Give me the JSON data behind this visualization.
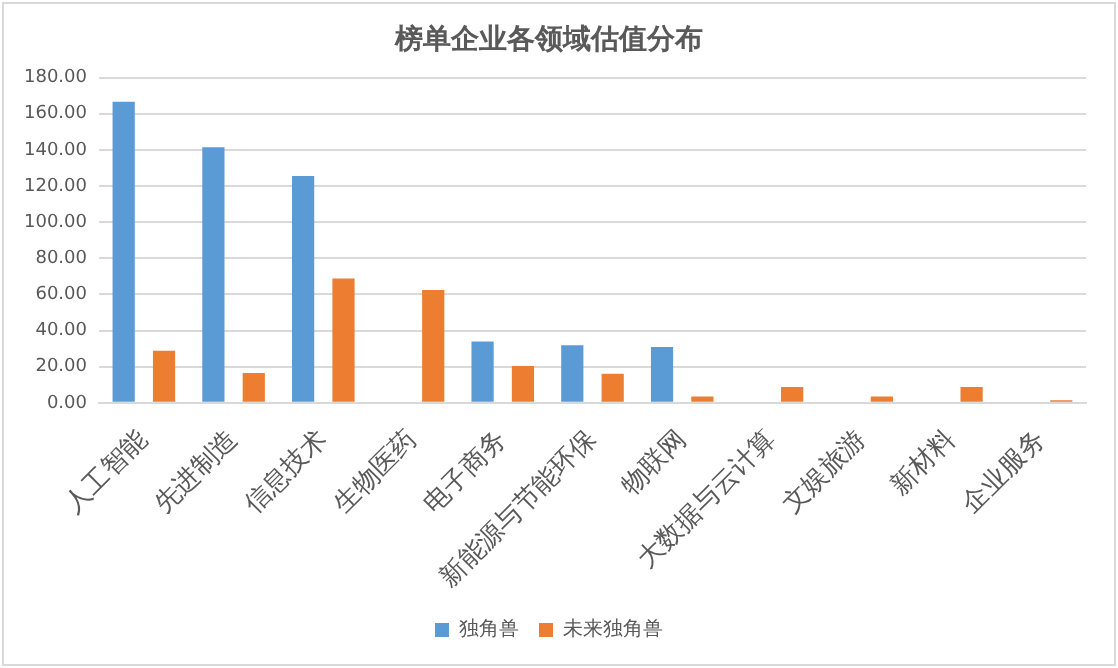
{
  "chart_data": {
    "type": "bar",
    "title": "榜单企业各领域估值分布",
    "categories": [
      "人工智能",
      "先进制造",
      "信息技术",
      "生物医药",
      "电子商务",
      "新能源与节能环保",
      "物联网",
      "大数据与云计算",
      "文娱旅游",
      "新材料",
      "企业服务"
    ],
    "series": [
      {
        "name": "独角兽",
        "color": "#5b9bd5",
        "values": [
          166.7,
          141.4,
          125.6,
          null,
          34.0,
          31.9,
          30.9,
          null,
          null,
          null,
          null
        ]
      },
      {
        "name": "未来独角兽",
        "color": "#ed7d31",
        "values": [
          28.8,
          16.5,
          68.8,
          62.5,
          20.4,
          16.1,
          3.5,
          8.8,
          3.5,
          8.8,
          1.4
        ]
      }
    ],
    "ylim": [
      0,
      180
    ],
    "yticks": [
      {
        "value": 0,
        "label": "0.00"
      },
      {
        "value": 20,
        "label": "20.00"
      },
      {
        "value": 40,
        "label": "40.00"
      },
      {
        "value": 60,
        "label": "60.00"
      },
      {
        "value": 80,
        "label": "80.00"
      },
      {
        "value": 100,
        "label": "100.00"
      },
      {
        "value": 120,
        "label": "120.00"
      },
      {
        "value": 140,
        "label": "140.00"
      },
      {
        "value": 160,
        "label": "160.00"
      },
      {
        "value": 180,
        "label": "180.00"
      }
    ],
    "grid": "y",
    "legend": "bottom"
  }
}
